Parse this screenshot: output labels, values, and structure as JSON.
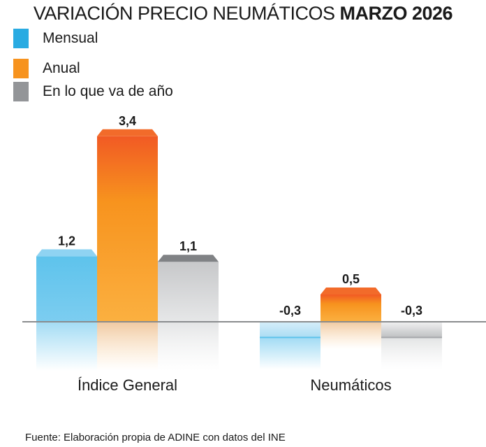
{
  "chart_data": {
    "type": "bar",
    "title": "VARIACIÓN PRECIO NEUMÁTICOS",
    "title_bold": "MARZO 2026",
    "categories": [
      "Índice General",
      "Neumáticos"
    ],
    "series": [
      {
        "name": "Mensual",
        "values": [
          1.2,
          -0.3
        ],
        "labels": [
          "1,2",
          "-0,3"
        ],
        "color": "#29abe2"
      },
      {
        "name": "Anual",
        "values": [
          3.4,
          0.5
        ],
        "labels": [
          "3,4",
          "0,5"
        ],
        "color": "#f7931e"
      },
      {
        "name": "En lo que va de año",
        "values": [
          1.1,
          -0.3
        ],
        "labels": [
          "1,1",
          "-0,3"
        ],
        "color": "#939598"
      }
    ],
    "legend_position": "top-left",
    "grid": false,
    "source": "Fuente: Elaboración propia de ADINE con datos del INE"
  }
}
